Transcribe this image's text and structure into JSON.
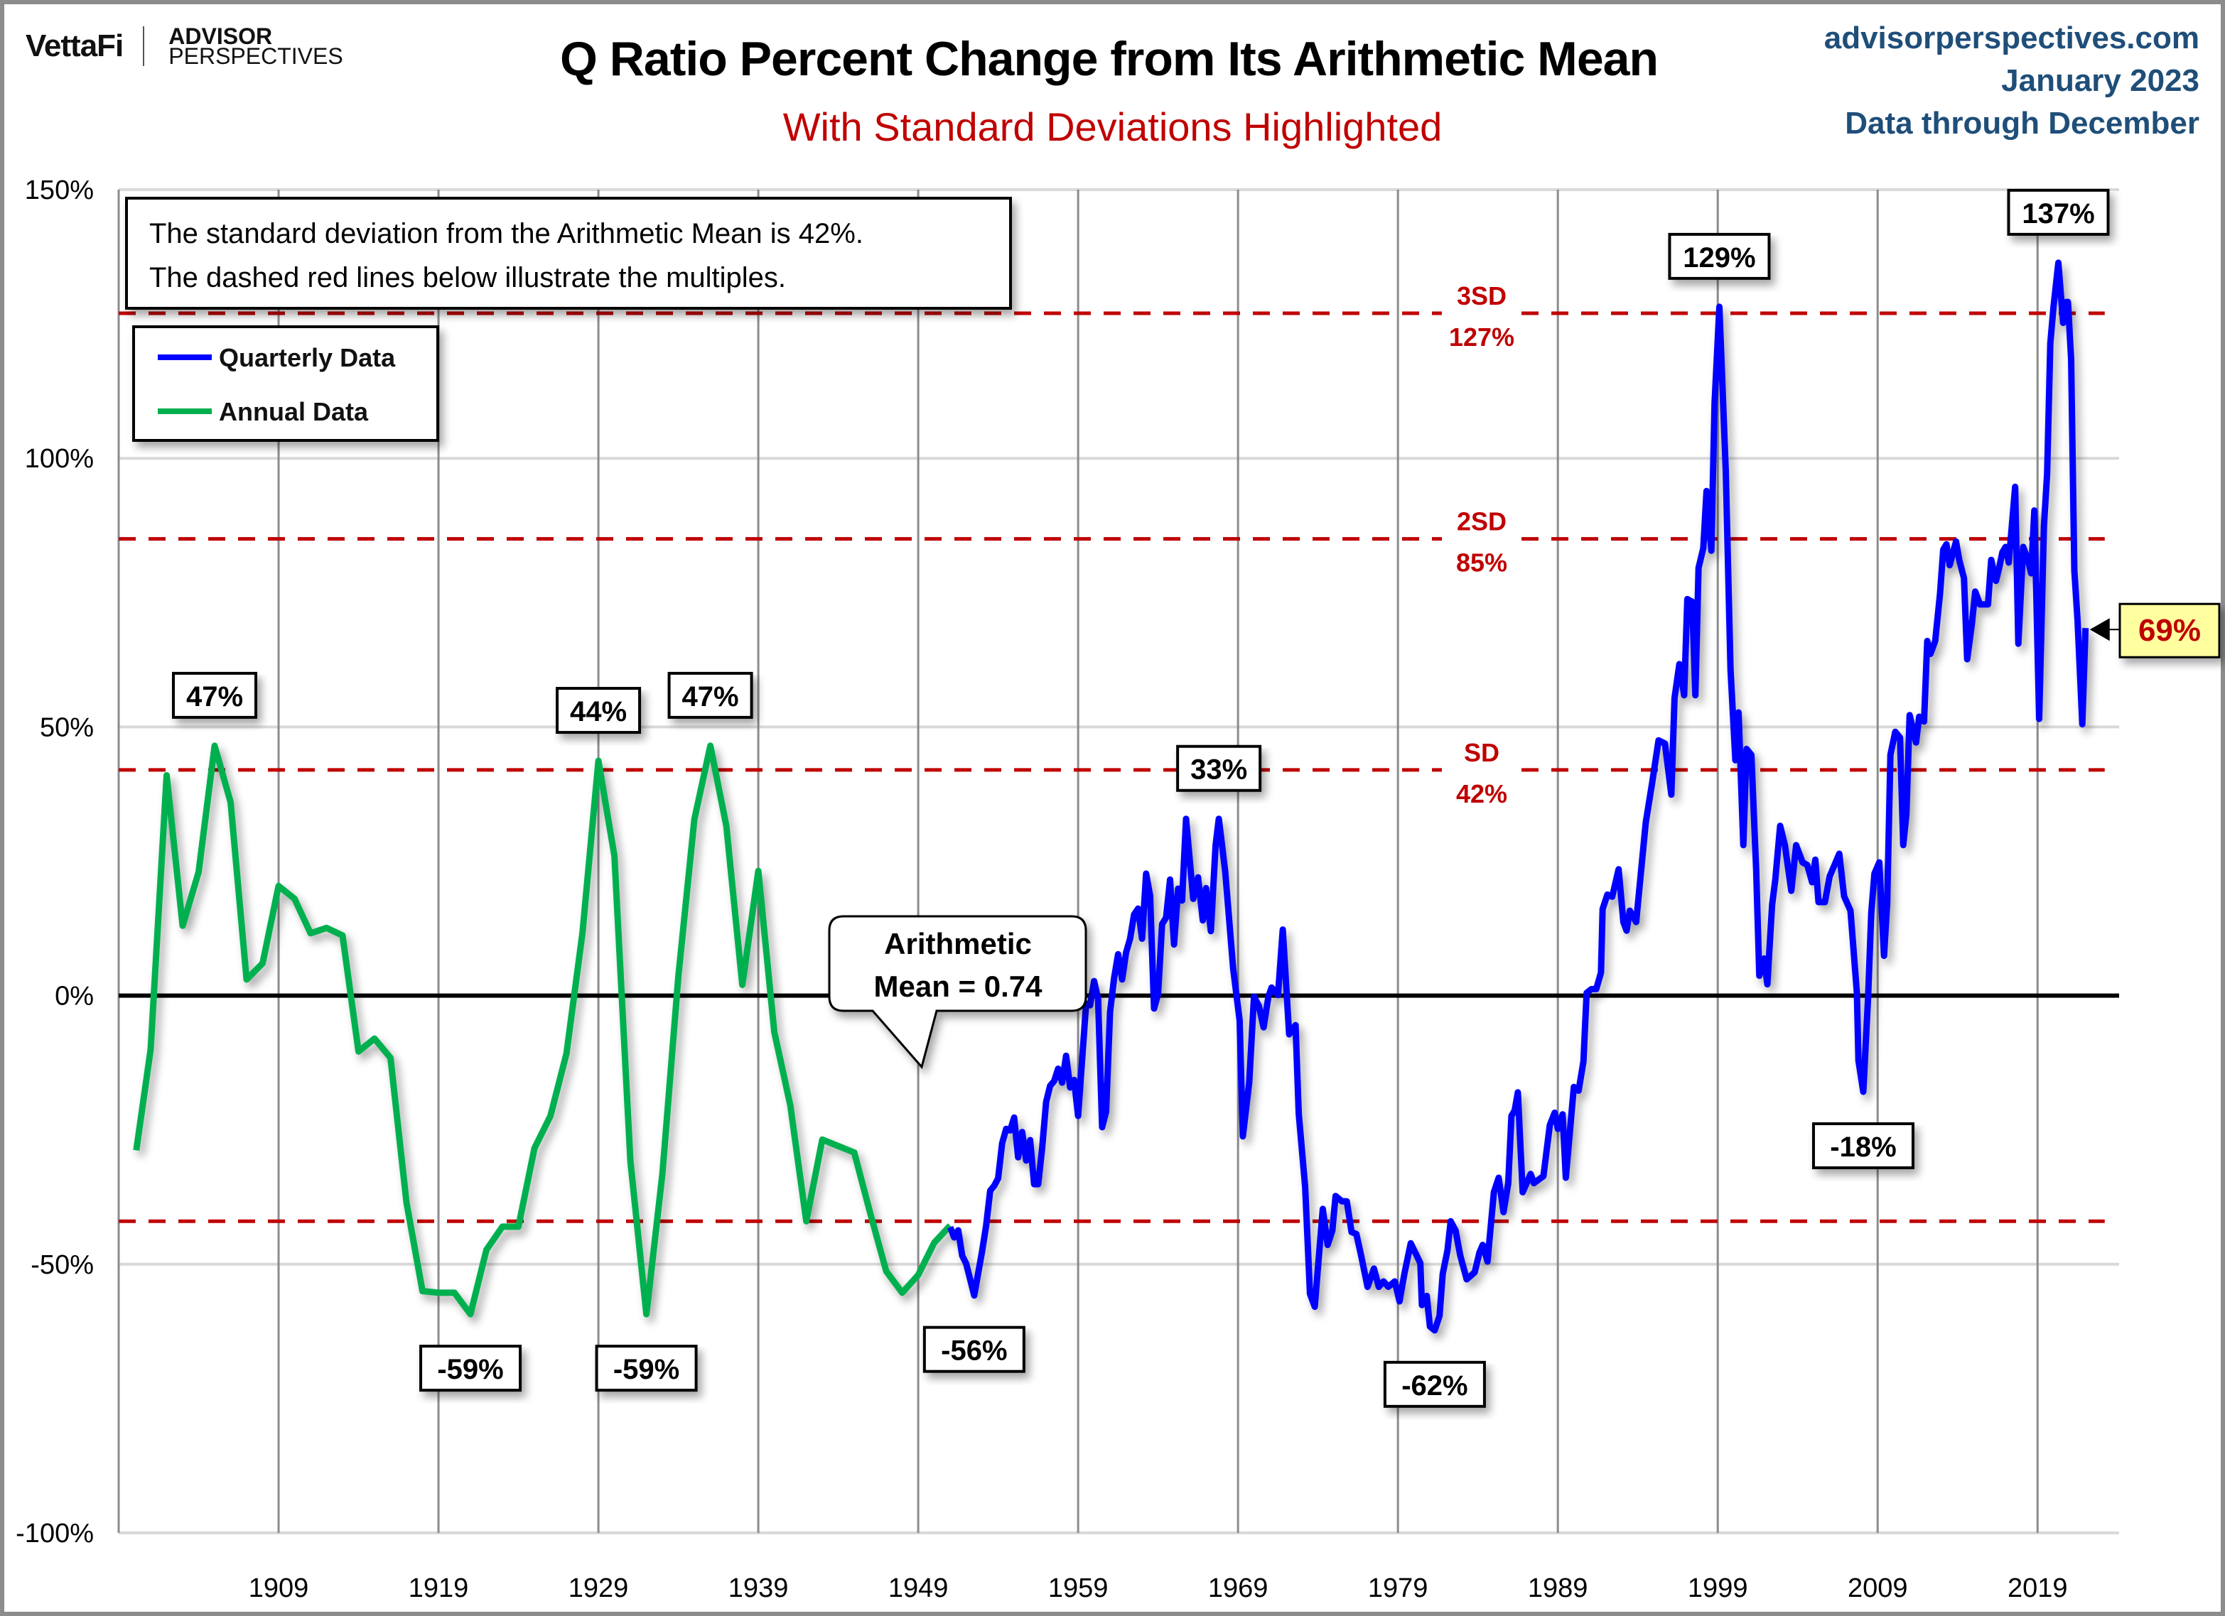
{
  "header": {
    "logo_left": "VettaFi",
    "logo_right_top": "ADVISOR",
    "logo_right_bottom": "PERSPECTIVES",
    "source_site": "advisorperspectives.com",
    "source_date": "January 2023",
    "source_note": "Data through December"
  },
  "colors": {
    "quarterly": "#0000ff",
    "annual": "#00b050",
    "sd_lines": "#c00000",
    "mean_line": "#000000",
    "latest_box": "#ffffa0",
    "source_text": "#1f4e79"
  },
  "chart_data": {
    "type": "line",
    "title": "Q Ratio Percent Change from Its Arithmetic Mean",
    "subtitle": "With Standard Deviations Highlighted",
    "xlabel": "",
    "ylabel": "",
    "xlim": [
      1899,
      2024.1
    ],
    "ylim": [
      -100,
      150
    ],
    "x_ticks": [
      1909,
      1919,
      1929,
      1939,
      1949,
      1959,
      1969,
      1979,
      1989,
      1999,
      2009,
      2019
    ],
    "y_ticks": [
      {
        "value": 150,
        "label": "150%"
      },
      {
        "value": 100,
        "label": "100%"
      },
      {
        "value": 50,
        "label": "50%"
      },
      {
        "value": 0,
        "label": "0%"
      },
      {
        "value": -50,
        "label": "-50%"
      },
      {
        "value": -100,
        "label": "-100%"
      }
    ],
    "grid": true,
    "legend": {
      "position": "top-left",
      "entries": [
        {
          "name": "Quarterly Data",
          "series": "quarterly"
        },
        {
          "name": "Annual Data",
          "series": "annual"
        }
      ]
    },
    "note": [
      "The standard deviation from the Arithmetic Mean is 42%.",
      "The dashed red lines below illustrate the multiples."
    ],
    "mean": {
      "value": 0,
      "label_line1": "Arithmetic",
      "label_line2": "Mean = 0.74"
    },
    "sd_lines": [
      {
        "value": 127,
        "label": "3SD",
        "value_label": "127%"
      },
      {
        "value": 85,
        "label": "2SD",
        "value_label": "85%"
      },
      {
        "value": 42,
        "label": "SD",
        "value_label": "42%"
      },
      {
        "value": -42,
        "label": "",
        "value_label": ""
      }
    ],
    "annotations": [
      {
        "label": "47%",
        "x": 1905,
        "y": 46.5,
        "pos": "above"
      },
      {
        "label": "44%",
        "x": 1929,
        "y": 43.7,
        "pos": "above"
      },
      {
        "label": "47%",
        "x": 1936,
        "y": 46.5,
        "pos": "above"
      },
      {
        "label": "33%",
        "x": 1967.8,
        "y": 32.9,
        "pos": "above"
      },
      {
        "label": "129%",
        "x": 1999.1,
        "y": 128.2,
        "pos": "above"
      },
      {
        "label": "137%",
        "x": 2020.3,
        "y": 136.4,
        "pos": "above"
      },
      {
        "label": "-59%",
        "x": 1921,
        "y": -59.3,
        "pos": "below"
      },
      {
        "label": "-59%",
        "x": 1932,
        "y": -59.3,
        "pos": "below"
      },
      {
        "label": "-56%",
        "x": 1952.5,
        "y": -55.8,
        "pos": "below"
      },
      {
        "label": "-62%",
        "x": 1981.3,
        "y": -62.3,
        "pos": "below"
      },
      {
        "label": "-18%",
        "x": 2008.1,
        "y": -17.9,
        "pos": "below"
      }
    ],
    "latest": {
      "label": "69%",
      "x": 2022.0,
      "y": 68.4
    },
    "series": [
      {
        "name": "Annual Data",
        "key": "annual",
        "x": [
          1900.1,
          1901,
          1902,
          1903,
          1904,
          1905,
          1906,
          1907,
          1908,
          1909,
          1910,
          1911,
          1912,
          1913,
          1914,
          1915,
          1916,
          1917,
          1918,
          1919,
          1920,
          1921,
          1922,
          1923,
          1924,
          1925,
          1926,
          1927,
          1928,
          1929,
          1930,
          1931,
          1932,
          1933,
          1934,
          1935,
          1936,
          1937,
          1938,
          1939,
          1940,
          1941,
          1942,
          1943,
          1944,
          1945,
          1946,
          1947,
          1948,
          1949,
          1950,
          1951
        ],
        "y": [
          -28.8,
          -10,
          41,
          13,
          23,
          46.5,
          36,
          3,
          6,
          20.4,
          18,
          11.6,
          12.6,
          11.2,
          -10.4,
          -8,
          -11.6,
          -38.5,
          -55,
          -55.3,
          -55.3,
          -59.3,
          -47.3,
          -43,
          -43,
          -28.4,
          -22.4,
          -10.8,
          11.6,
          43.7,
          26,
          -30.8,
          -59.3,
          -33.2,
          3.6,
          32.8,
          46.5,
          31.6,
          2,
          23.2,
          -6.8,
          -20.4,
          -42,
          -26.8,
          -28,
          -29.2,
          -40.5,
          -51.3,
          -55.3,
          -52,
          -46,
          -42.8
        ]
      },
      {
        "name": "Quarterly Data",
        "key": "quarterly",
        "x": [
          1951.0,
          1951.25,
          1951.5,
          1951.75,
          1952,
          1952.5,
          1953,
          1953.25,
          1953.5,
          1953.75,
          1954,
          1954.25,
          1954.5,
          1954.75,
          1955,
          1955.25,
          1955.5,
          1955.75,
          1956,
          1956.25,
          1956.5,
          1956.75,
          1957,
          1957.25,
          1957.5,
          1957.75,
          1958,
          1958.25,
          1958.5,
          1958.75,
          1959,
          1959.5,
          1959.75,
          1960,
          1960.25,
          1960.5,
          1960.75,
          1961,
          1961.25,
          1961.5,
          1961.75,
          1962,
          1962.25,
          1962.5,
          1962.75,
          1963,
          1963.25,
          1963.5,
          1963.75,
          1964,
          1964.25,
          1964.5,
          1964.75,
          1965,
          1965.25,
          1965.5,
          1965.75,
          1966.2,
          1966.5,
          1966.8,
          1967.0,
          1967.3,
          1967.6,
          1967.8,
          1968.2,
          1968.7,
          1969.1,
          1969.3,
          1969.7,
          1970.0,
          1970.3,
          1970.6,
          1970.9,
          1971.1,
          1971.5,
          1971.8,
          1972.2,
          1972.6,
          1972.8,
          1973.2,
          1973.5,
          1973.8,
          1974.3,
          1974.6,
          1974.9,
          1975.1,
          1975.5,
          1975.8,
          1976.1,
          1976.4,
          1976.7,
          1977.1,
          1977.5,
          1977.8,
          1978.1,
          1978.4,
          1978.8,
          1979.1,
          1979.4,
          1979.8,
          1980.4,
          1980.5,
          1980.8,
          1981.0,
          1981.3,
          1981.6,
          1981.8,
          1982.1,
          1982.3,
          1982.6,
          1982.9,
          1983.3,
          1983.8,
          1984.1,
          1984.3,
          1984.6,
          1985.0,
          1985.3,
          1985.6,
          1985.9,
          1986.1,
          1986.3,
          1986.5,
          1986.8,
          1987.3,
          1987.5,
          1988.1,
          1988.5,
          1988.8,
          1989.0,
          1989.3,
          1989.5,
          1990.0,
          1990.3,
          1990.6,
          1990.8,
          1991.1,
          1991.4,
          1991.7,
          1991.8,
          1992.1,
          1992.4,
          1992.8,
          1993.1,
          1993.3,
          1993.5,
          1993.9,
          1994.5,
          1994.9,
          1995.3,
          1995.7,
          1996.1,
          1996.3,
          1996.6,
          1996.9,
          1997.1,
          1997.4,
          1997.6,
          1997.8,
          1998.1,
          1998.3,
          1998.6,
          1998.8,
          1999.1,
          1999.5,
          1999.8,
          2000.1,
          2000.3,
          2000.6,
          2000.8,
          2001.1,
          2001.4,
          2001.6,
          2001.9,
          2002.1,
          2002.4,
          2002.6,
          2002.9,
          2003.2,
          2003.6,
          2003.9,
          2004.3,
          2004.6,
          2004.9,
          2005.1,
          2005.3,
          2005.7,
          2006.0,
          2006.6,
          2006.9,
          2007.3,
          2007.7,
          2007.8,
          2008.1,
          2008.4,
          2008.6,
          2008.8,
          2009.1,
          2009.4,
          2009.6,
          2009.8,
          2010.1,
          2010.4,
          2010.6,
          2010.8,
          2011.0,
          2011.4,
          2011.6,
          2011.9,
          2012.1,
          2012.3,
          2012.6,
          2012.9,
          2013.1,
          2013.3,
          2013.5,
          2013.9,
          2014.1,
          2014.4,
          2014.6,
          2014.9,
          2015.1,
          2015.4,
          2015.9,
          2016.1,
          2016.4,
          2016.6,
          2016.8,
          2017.0,
          2017.2,
          2017.6,
          2017.8,
          2018.1,
          2018.4,
          2018.6,
          2018.8,
          2019.1,
          2019.4,
          2019.6,
          2019.8,
          2020.0,
          2020.3,
          2020.6,
          2020.8,
          2020.9,
          2021.1,
          2021.3,
          2021.5,
          2021.8,
          2022.0
        ],
        "y": [
          -43.1,
          -45,
          -43.7,
          -48.4,
          -49.9,
          -55.8,
          -47.5,
          -42.8,
          -36.3,
          -35.4,
          -34,
          -27.5,
          -24.8,
          -25.1,
          -22.7,
          -30.1,
          -25.4,
          -30.7,
          -26.9,
          -35.1,
          -35.1,
          -28.4,
          -19.8,
          -16.8,
          -15.9,
          -13.6,
          -16.2,
          -11.2,
          -17.1,
          -15.7,
          -22.4,
          -1.5,
          -1.8,
          2.7,
          -0.6,
          -24.5,
          -21.6,
          -3,
          3.2,
          7.7,
          3,
          8,
          10.6,
          15.1,
          16.2,
          10.6,
          22.7,
          18.6,
          -2.4,
          0.3,
          13.3,
          14.5,
          21.6,
          9.5,
          19.9,
          17.7,
          32.9,
          18,
          22,
          14,
          20,
          12,
          28,
          32.9,
          23.1,
          4.9,
          -4.6,
          -26.2,
          -16.1,
          -0.2,
          -1.9,
          -5.9,
          -0.2,
          1.5,
          0.1,
          12.3,
          -7.2,
          -5.5,
          -22,
          -35.6,
          -55.5,
          -57.9,
          -39.7,
          -46.4,
          -43.7,
          -37.3,
          -38.3,
          -38.3,
          -44,
          -44.4,
          -48.4,
          -54.2,
          -50.8,
          -54.2,
          -53.2,
          -54.2,
          -53.2,
          -56.9,
          -51.8,
          -46.1,
          -49.8,
          -57.6,
          -55.9,
          -61.6,
          -62.3,
          -59.6,
          -51.8,
          -47.4,
          -42,
          -43.7,
          -48.4,
          -52.8,
          -51.5,
          -47.8,
          -46.4,
          -49.5,
          -36.6,
          -33.9,
          -40.3,
          -34.9,
          -22.4,
          -21.4,
          -18,
          -36.6,
          -33.2,
          -34.9,
          -33.6,
          -24.1,
          -21.8,
          -24.8,
          -22.1,
          -33.9,
          -17,
          -17.7,
          -12.3,
          0.5,
          1.2,
          1.2,
          4.3,
          16.1,
          18.8,
          18.4,
          23.5,
          13.7,
          12.1,
          15.8,
          13.7,
          32.2,
          39.6,
          47.5,
          46.9,
          37.4,
          55.4,
          61.7,
          55.9,
          73.8,
          73.3,
          55.9,
          79.6,
          83.3,
          93.9,
          82.8,
          110.2,
          128.2,
          97.6,
          60.7,
          43.8,
          52.7,
          28,
          45.9,
          44.8,
          23.7,
          3.7,
          6.9,
          2.1,
          16.9,
          21.6,
          31.6,
          28,
          19.5,
          28,
          24.8,
          24.3,
          21.1,
          25.3,
          17.4,
          17.4,
          22.2,
          26.4,
          18.5,
          15.8,
          0.5,
          -12.1,
          -17.9,
          -0.5,
          15.3,
          22.7,
          24.8,
          7.4,
          17.4,
          44.8,
          49.1,
          48,
          28,
          33.8,
          52.2,
          47.1,
          51.9,
          51,
          66,
          63.6,
          66,
          74.8,
          83,
          84,
          80.1,
          84.5,
          81.1,
          77.7,
          62.6,
          69.4,
          75.2,
          72.8,
          72.8,
          81.1,
          77.2,
          79.6,
          82.5,
          83.5,
          80.6,
          94.7,
          65.5,
          83.5,
          81.1,
          78.6,
          90.3,
          51.5,
          87.4,
          97.1,
          121.4,
          128.2,
          136.4,
          125.2,
          129.1,
          129.1,
          118.4,
          79.1,
          69.9,
          50.5,
          68.4
        ]
      }
    ]
  }
}
